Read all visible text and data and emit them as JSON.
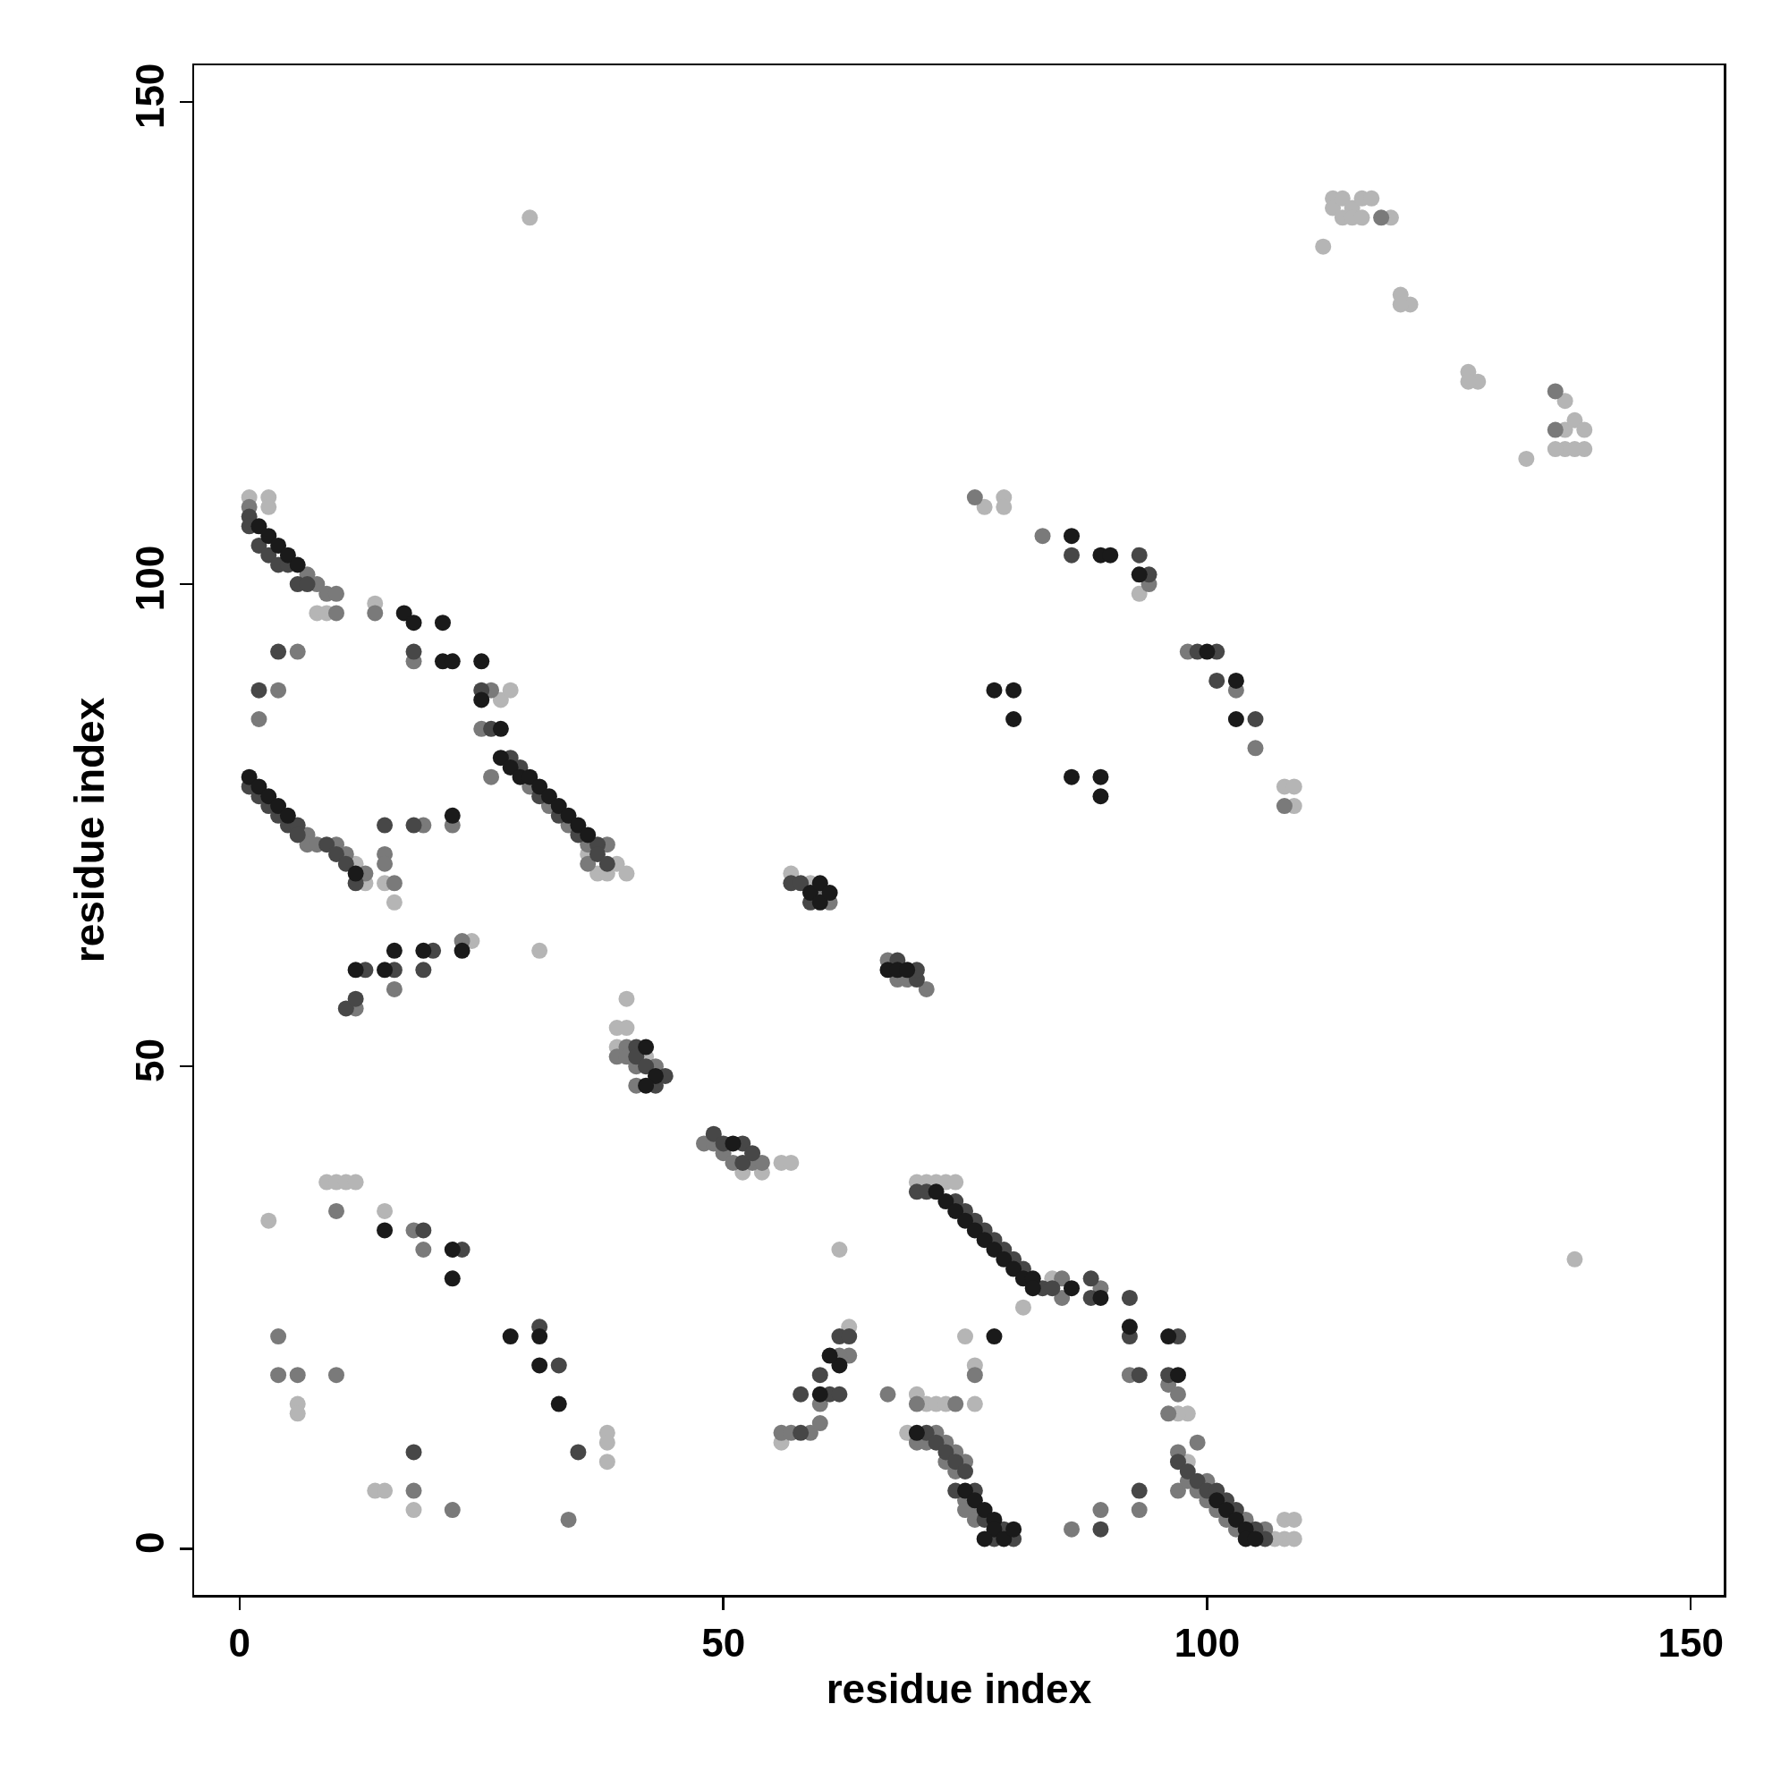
{
  "chart_data": {
    "type": "scatter",
    "xlabel": "residue index",
    "ylabel": "residue index",
    "xlim": [
      -4.7,
      153.4
    ],
    "ylim": [
      -4.8,
      153.8
    ],
    "xticks": [
      0,
      50,
      100,
      150
    ],
    "yticks": [
      0,
      50,
      100,
      150
    ],
    "grid": false,
    "marker": "circle",
    "series": [
      {
        "color": "#b5b5b5",
        "x": [
          1,
          3,
          3,
          8,
          9,
          14,
          27,
          28,
          12,
          13,
          16,
          15,
          37,
          38,
          39,
          40,
          36,
          40,
          39,
          40,
          39,
          42,
          24,
          31,
          54,
          52,
          56,
          57,
          57,
          59,
          9,
          10,
          11,
          12,
          3,
          15,
          6,
          6,
          38,
          38,
          38,
          14,
          15,
          18,
          62,
          56,
          63,
          70,
          71,
          72,
          73,
          74,
          81,
          75,
          76,
          76,
          71,
          72,
          73,
          70,
          69,
          84,
          98,
          97,
          108,
          107,
          108,
          109,
          109,
          98,
          30,
          113,
          113,
          114,
          114,
          115,
          115,
          116,
          116,
          117,
          119,
          112,
          120,
          121,
          120,
          127,
          128,
          127,
          133,
          137,
          137,
          138,
          137,
          138,
          139,
          139,
          136,
          79,
          79,
          77,
          93,
          108,
          109,
          109,
          138
        ],
        "values": [
          109,
          109,
          108,
          97,
          97,
          98,
          88,
          89,
          71,
          69,
          67,
          69,
          70,
          70,
          71,
          70,
          72,
          57,
          54,
          54,
          52,
          51,
          63,
          62,
          39,
          39,
          40,
          40,
          70,
          69,
          38,
          38,
          38,
          38,
          34,
          35,
          15,
          14,
          12,
          11,
          9,
          6,
          6,
          4,
          31,
          11,
          23,
          38,
          38,
          38,
          38,
          38,
          25,
          22,
          19,
          15,
          15,
          15,
          15,
          16,
          12,
          28,
          14,
          14,
          1,
          1,
          3,
          3,
          1,
          9,
          138,
          140,
          139,
          140,
          138,
          139,
          138,
          140,
          138,
          140,
          138,
          135,
          130,
          129,
          129,
          122,
          121,
          121,
          113,
          119,
          116,
          117,
          114,
          114,
          114,
          116,
          114,
          109,
          108,
          108,
          99,
          79,
          79,
          77,
          30
        ]
      },
      {
        "color": "#7a7a7a",
        "x": [
          1,
          7,
          8,
          9,
          10,
          10,
          14,
          18,
          25,
          26,
          6,
          2,
          4,
          7,
          7,
          8,
          10,
          11,
          13,
          15,
          15,
          16,
          19,
          22,
          26,
          30,
          32,
          34,
          36,
          38,
          36,
          16,
          12,
          23,
          40,
          39,
          40,
          41,
          43,
          41,
          48,
          49,
          50,
          51,
          53,
          54,
          60,
          61,
          67,
          68,
          69,
          10,
          18,
          19,
          4,
          6,
          10,
          4,
          18,
          22,
          34,
          56,
          57,
          59,
          60,
          60,
          63,
          62,
          73,
          73,
          74,
          75,
          74,
          75,
          76,
          76,
          75,
          72,
          70,
          71,
          67,
          70,
          74,
          76,
          85,
          85,
          89,
          92,
          96,
          97,
          96,
          97,
          97,
          98,
          99,
          100,
          100,
          101,
          102,
          103,
          104,
          106,
          99,
          86,
          89,
          93,
          71,
          76,
          83,
          94,
          98,
          103,
          105,
          108,
          136,
          136,
          118
        ],
        "values": [
          108,
          101,
          100,
          99,
          99,
          97,
          97,
          92,
          85,
          89,
          93,
          86,
          89,
          74,
          73,
          73,
          73,
          72,
          70,
          72,
          71,
          69,
          75,
          75,
          80,
          79,
          77,
          75,
          73,
          73,
          71,
          58,
          56,
          63,
          52,
          51,
          51,
          50,
          50,
          48,
          42,
          42,
          41,
          40,
          40,
          40,
          68,
          67,
          61,
          59,
          59,
          35,
          33,
          31,
          18,
          18,
          18,
          22,
          6,
          4,
          3,
          12,
          12,
          12,
          13,
          15,
          20,
          20,
          11,
          9,
          10,
          9,
          8,
          5,
          4,
          3,
          4,
          12,
          11,
          11,
          16,
          15,
          15,
          18,
          28,
          26,
          27,
          18,
          17,
          16,
          14,
          10,
          6,
          7,
          6,
          7,
          5,
          4,
          3,
          2,
          3,
          2,
          11,
          2,
          4,
          4,
          58,
          109,
          105,
          100,
          93,
          89,
          83,
          77,
          120,
          116,
          138
        ]
      },
      {
        "color": "#474747",
        "x": [
          1,
          1,
          2,
          3,
          4,
          5,
          6,
          7,
          4,
          2,
          1,
          2,
          3,
          4,
          5,
          6,
          6,
          9,
          10,
          11,
          12,
          15,
          18,
          18,
          25,
          26,
          28,
          29,
          31,
          33,
          35,
          37,
          37,
          38,
          13,
          16,
          19,
          20,
          11,
          12,
          41,
          41,
          42,
          43,
          44,
          49,
          50,
          52,
          52,
          53,
          57,
          58,
          59,
          68,
          70,
          70,
          19,
          23,
          31,
          33,
          18,
          35,
          58,
          58,
          61,
          62,
          60,
          62,
          63,
          70,
          71,
          74,
          75,
          76,
          77,
          78,
          79,
          80,
          81,
          83,
          84,
          88,
          88,
          92,
          92,
          93,
          97,
          96,
          71,
          72,
          73,
          74,
          75,
          74,
          76,
          77,
          79,
          80,
          78,
          97,
          98,
          99,
          100,
          101,
          102,
          103,
          105,
          106,
          93,
          89,
          86,
          94,
          93,
          99,
          101,
          101,
          105
        ],
        "values": [
          107,
          106,
          104,
          103,
          102,
          102,
          100,
          100,
          93,
          89,
          79,
          78,
          77,
          76,
          75,
          75,
          74,
          73,
          72,
          71,
          69,
          75,
          75,
          93,
          89,
          85,
          82,
          81,
          78,
          76,
          74,
          73,
          72,
          71,
          60,
          60,
          60,
          62,
          56,
          57,
          52,
          51,
          50,
          48,
          49,
          43,
          42,
          42,
          40,
          41,
          69,
          69,
          67,
          61,
          59,
          60,
          33,
          31,
          23,
          19,
          10,
          10,
          12,
          16,
          16,
          16,
          18,
          22,
          22,
          37,
          37,
          36,
          35,
          34,
          33,
          32,
          31,
          30,
          29,
          27,
          27,
          28,
          26,
          26,
          22,
          18,
          22,
          18,
          12,
          11,
          10,
          9,
          8,
          6,
          6,
          3,
          2,
          1,
          1,
          9,
          8,
          7,
          6,
          6,
          5,
          4,
          2,
          1,
          6,
          2,
          103,
          101,
          103,
          93,
          93,
          90,
          86
        ]
      },
      {
        "color": "#1a1a1a",
        "x": [
          86,
          89,
          90,
          93,
          100,
          103,
          103,
          78,
          80,
          80,
          86,
          89,
          89,
          2,
          3,
          4,
          5,
          6,
          1,
          2,
          3,
          4,
          5,
          12,
          17,
          18,
          21,
          21,
          22,
          25,
          25,
          27,
          22,
          27,
          28,
          29,
          30,
          31,
          32,
          33,
          34,
          35,
          36,
          12,
          15,
          16,
          19,
          23,
          42,
          43,
          42,
          51,
          59,
          60,
          60,
          61,
          67,
          68,
          69,
          15,
          22,
          22,
          28,
          31,
          31,
          33,
          60,
          62,
          61,
          72,
          73,
          74,
          75,
          76,
          77,
          78,
          79,
          80,
          81,
          82,
          82,
          78,
          86,
          89,
          92,
          96,
          97,
          70,
          75,
          76,
          77,
          78,
          78,
          79,
          77,
          80,
          101,
          102,
          103,
          104,
          104,
          105
        ],
        "values": [
          105,
          103,
          103,
          101,
          93,
          90,
          86,
          89,
          89,
          86,
          80,
          80,
          78,
          106,
          105,
          104,
          103,
          102,
          80,
          79,
          78,
          77,
          76,
          70,
          97,
          96,
          96,
          92,
          92,
          92,
          88,
          85,
          76,
          82,
          81,
          80,
          80,
          79,
          78,
          77,
          76,
          75,
          74,
          60,
          60,
          62,
          62,
          62,
          52,
          49,
          48,
          42,
          68,
          67,
          69,
          68,
          60,
          60,
          60,
          33,
          31,
          28,
          22,
          22,
          19,
          15,
          16,
          19,
          20,
          37,
          36,
          35,
          34,
          33,
          32,
          31,
          30,
          29,
          28,
          28,
          27,
          22,
          27,
          26,
          23,
          22,
          18,
          12,
          6,
          5,
          4,
          3,
          2,
          1,
          1,
          2,
          5,
          4,
          3,
          2,
          1,
          1
        ]
      }
    ]
  }
}
